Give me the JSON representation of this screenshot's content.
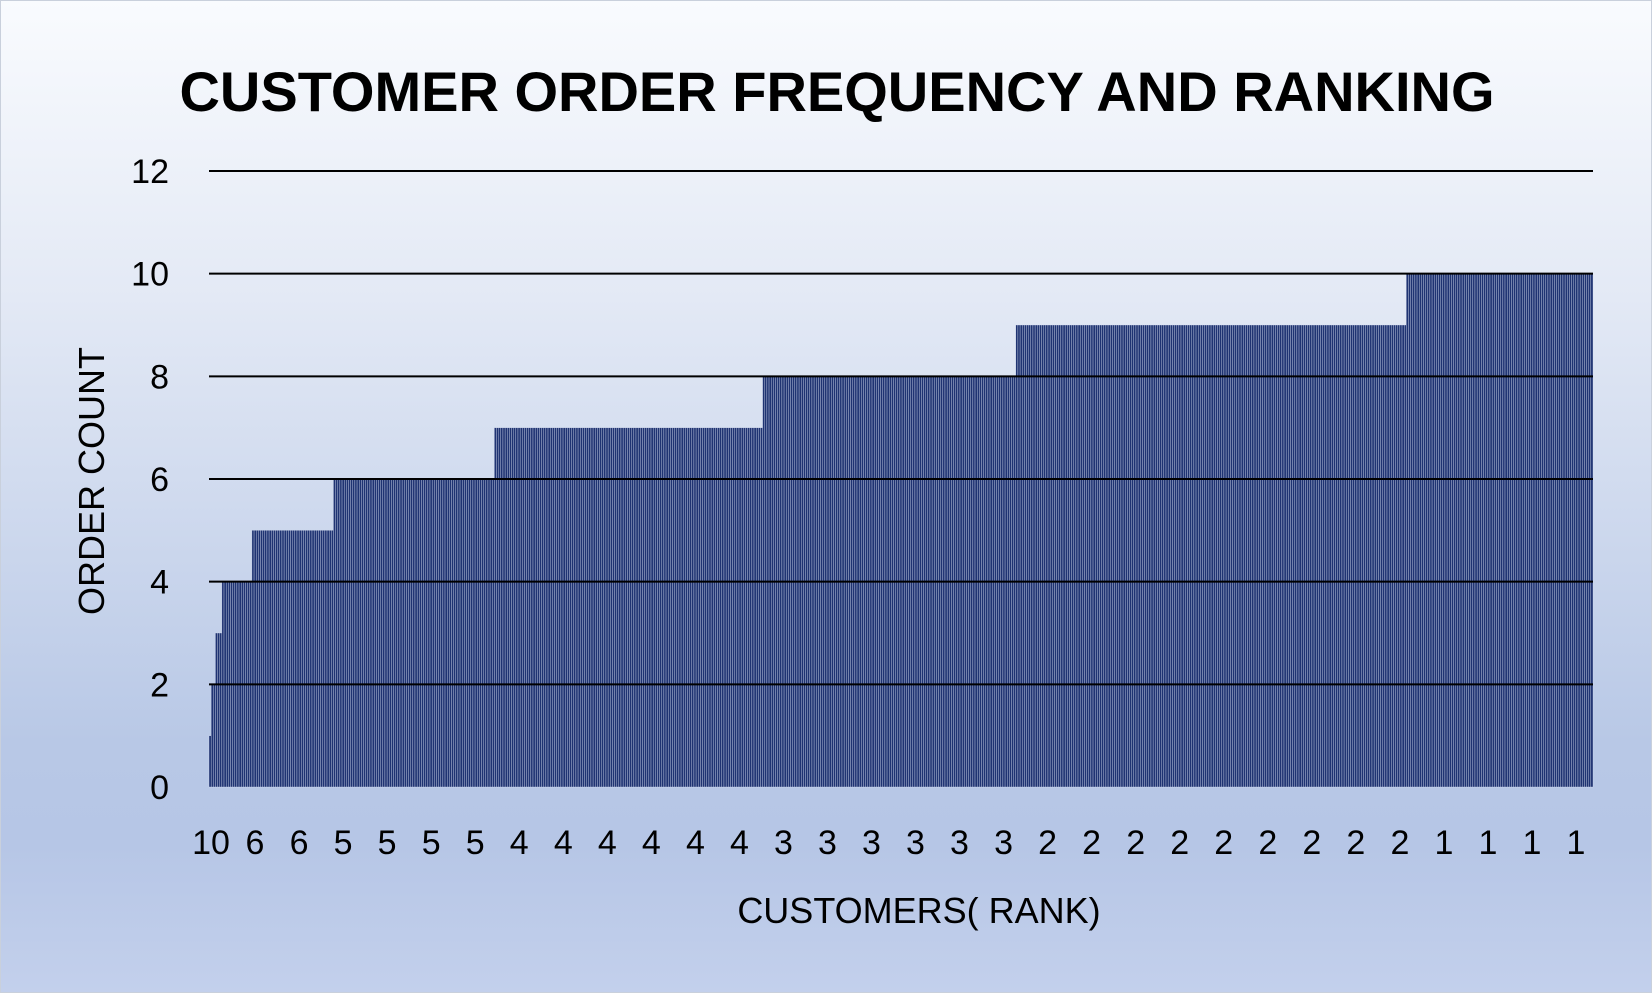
{
  "chart_data": {
    "type": "bar",
    "title": "CUSTOMER ORDER FREQUENCY AND RANKING",
    "xlabel": "CUSTOMERS( RANK)",
    "ylabel": "ORDER COUNT",
    "ylim": [
      0,
      12
    ],
    "yticks": [
      0,
      2,
      4,
      6,
      8,
      10,
      12
    ],
    "x_tick_labels": [
      "10",
      "6",
      "6",
      "5",
      "5",
      "5",
      "5",
      "4",
      "4",
      "4",
      "4",
      "4",
      "4",
      "3",
      "3",
      "3",
      "3",
      "3",
      "3",
      "2",
      "2",
      "2",
      "2",
      "2",
      "2",
      "2",
      "2",
      "2",
      "1",
      "1",
      "1",
      "1"
    ],
    "grid": true,
    "legend": "none",
    "bar_color": "#1f3372",
    "groups": [
      {
        "order_count": 1,
        "customers": 1
      },
      {
        "order_count": 2,
        "customers": 2
      },
      {
        "order_count": 3,
        "customers": 3
      },
      {
        "order_count": 4,
        "customers": 14
      },
      {
        "order_count": 5,
        "customers": 38
      },
      {
        "order_count": 6,
        "customers": 75
      },
      {
        "order_count": 7,
        "customers": 125
      },
      {
        "order_count": 8,
        "customers": 118
      },
      {
        "order_count": 9,
        "customers": 182
      },
      {
        "order_count": 10,
        "customers": 87
      }
    ]
  }
}
